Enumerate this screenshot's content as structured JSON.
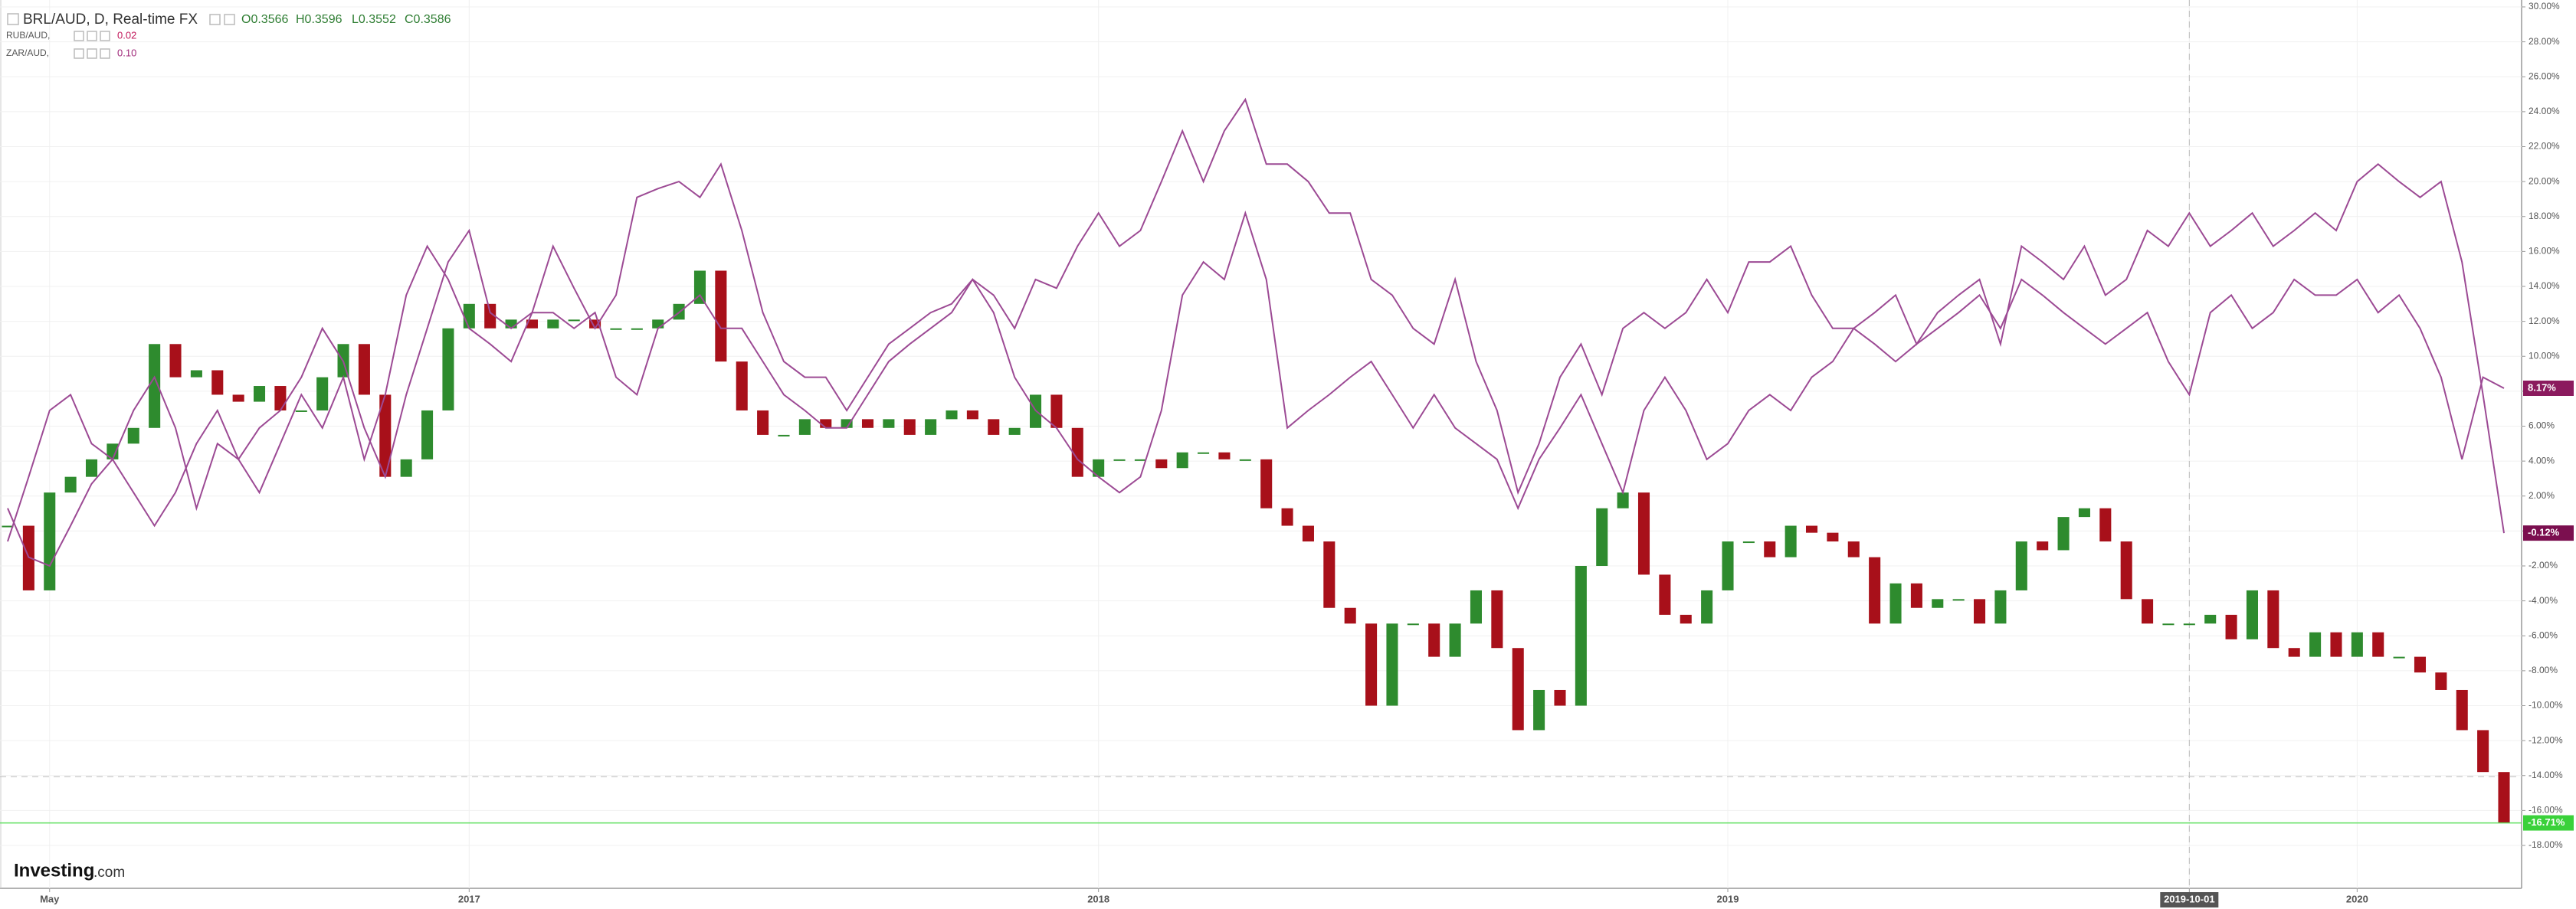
{
  "chart_data": {
    "type": "line",
    "series": [
      {
        "name": "BRL/AUD, D, Real-time FX",
        "kind": "candle",
        "up_color": "#2e8b2e",
        "down_color": "#a8101a",
        "last_line_color": "#5fe05f",
        "label_color": "#3ad13a",
        "ohlc": [
          {
            "value": 0.3566,
            "label": "O0.3566"
          },
          {
            "value": 0.3596,
            "label": "H0.3596"
          },
          {
            "value": 0.3552,
            "label": "L0.3552"
          },
          {
            "value": 0.3586,
            "label": "C0.3586"
          }
        ],
        "values": [
          0.3,
          -3.4,
          2.2,
          3.1,
          4.1,
          5.0,
          5.9,
          10.7,
          8.8,
          9.2,
          7.8,
          7.4,
          8.3,
          6.9,
          6.9,
          8.8,
          10.7,
          7.8,
          3.1,
          4.1,
          6.9,
          11.6,
          13.0,
          11.6,
          12.1,
          11.6,
          12.1,
          12.1,
          11.6,
          11.6,
          11.6,
          12.1,
          13.0,
          14.9,
          9.7,
          6.9,
          5.5,
          5.5,
          6.4,
          5.9,
          6.4,
          5.9,
          6.4,
          5.5,
          6.4,
          6.9,
          6.4,
          5.5,
          5.9,
          7.8,
          5.9,
          3.1,
          4.1,
          4.1,
          4.1,
          3.6,
          4.5,
          4.5,
          4.1,
          4.1,
          1.3,
          0.3,
          -0.6,
          -4.4,
          -5.3,
          -10.0,
          -5.3,
          -5.3,
          -7.2,
          -5.3,
          -3.4,
          -6.7,
          -11.4,
          -9.1,
          -10.0,
          -2.0,
          1.3,
          2.2,
          -2.5,
          -4.8,
          -5.3,
          -3.4,
          -0.6,
          -0.6,
          -1.5,
          0.3,
          -0.1,
          -0.6,
          -1.5,
          -5.3,
          -3.0,
          -4.4,
          -3.9,
          -3.9,
          -5.3,
          -3.4,
          -0.6,
          -1.1,
          0.8,
          1.3,
          -0.6,
          -3.9,
          -5.3,
          -5.3,
          -5.3,
          -4.8,
          -6.2,
          -3.4,
          -6.7,
          -7.2,
          -5.8,
          -7.2,
          -5.8,
          -7.2,
          -7.2,
          -8.1,
          -9.1,
          -11.4,
          -13.8,
          -16.71
        ],
        "value_labels": [
          null,
          null,
          null,
          null,
          null,
          null,
          null,
          null,
          null,
          null,
          null,
          null,
          null,
          null,
          null,
          null,
          null,
          null,
          null,
          null,
          null,
          null,
          null,
          null,
          null,
          null,
          null,
          null,
          null,
          null,
          null,
          null,
          null,
          null,
          null,
          null,
          null,
          null,
          null,
          null,
          null,
          null,
          null,
          null,
          null,
          null,
          null,
          null,
          null,
          null,
          null,
          null,
          null,
          null,
          null,
          null,
          null,
          null,
          null,
          null,
          null,
          null,
          null,
          null,
          null,
          null,
          null,
          null,
          null,
          null,
          null,
          null,
          null,
          null,
          null,
          null,
          null,
          null,
          null,
          null,
          null,
          null,
          null,
          null,
          null,
          null,
          null,
          null,
          null,
          null,
          null,
          null,
          null,
          null,
          null,
          null,
          null,
          null,
          null,
          null,
          null,
          null,
          null,
          null,
          null,
          null,
          null,
          null,
          null,
          null,
          null,
          null,
          null,
          null,
          null,
          null,
          null,
          null,
          null,
          "-16.71%"
        ]
      },
      {
        "name": "RUB/AUD,",
        "kind": "line",
        "color": "#9c4a94",
        "label_color": "#8b1a5e",
        "legend_color": "#c2185b",
        "legend_value": 0.02,
        "values": [
          1.3,
          -1.5,
          -2.0,
          0.3,
          2.7,
          4.1,
          2.2,
          0.3,
          2.2,
          5.0,
          6.9,
          4.1,
          2.2,
          5.0,
          7.8,
          5.9,
          8.8,
          4.1,
          7.8,
          13.5,
          16.3,
          14.4,
          11.6,
          10.7,
          9.7,
          12.5,
          12.5,
          11.6,
          12.5,
          8.8,
          7.8,
          11.6,
          12.5,
          13.5,
          11.6,
          11.6,
          9.7,
          7.8,
          6.9,
          5.9,
          5.9,
          7.8,
          9.7,
          10.7,
          11.6,
          12.5,
          14.4,
          12.5,
          8.8,
          6.9,
          5.9,
          4.1,
          3.1,
          2.2,
          3.1,
          6.9,
          13.5,
          15.4,
          14.4,
          18.2,
          14.4,
          5.9,
          6.9,
          7.8,
          8.8,
          9.7,
          7.8,
          5.9,
          7.8,
          5.9,
          5.0,
          4.1,
          1.3,
          4.1,
          5.9,
          7.8,
          5.0,
          2.2,
          6.9,
          8.8,
          6.9,
          4.1,
          5.0,
          6.9,
          7.8,
          6.9,
          8.8,
          9.7,
          11.6,
          10.7,
          9.7,
          10.7,
          11.6,
          12.5,
          13.5,
          11.6,
          14.4,
          13.5,
          12.5,
          11.6,
          10.7,
          11.6,
          12.5,
          9.7,
          7.8,
          12.5,
          13.5,
          11.6,
          12.5,
          14.4,
          13.5,
          13.5,
          14.4,
          12.5,
          13.5,
          11.6,
          8.8,
          4.1,
          8.8,
          8.17
        ],
        "value_labels": [
          null,
          null,
          null,
          null,
          null,
          null,
          null,
          null,
          null,
          null,
          null,
          null,
          null,
          null,
          null,
          null,
          null,
          null,
          null,
          null,
          null,
          null,
          null,
          null,
          null,
          null,
          null,
          null,
          null,
          null,
          null,
          null,
          null,
          null,
          null,
          null,
          null,
          null,
          null,
          null,
          null,
          null,
          null,
          null,
          null,
          null,
          null,
          null,
          null,
          null,
          null,
          null,
          null,
          null,
          null,
          null,
          null,
          null,
          null,
          null,
          null,
          null,
          null,
          null,
          null,
          null,
          null,
          null,
          null,
          null,
          null,
          null,
          null,
          null,
          null,
          null,
          null,
          null,
          null,
          null,
          null,
          null,
          null,
          null,
          null,
          null,
          null,
          null,
          null,
          null,
          null,
          null,
          null,
          null,
          null,
          null,
          null,
          null,
          null,
          null,
          null,
          null,
          null,
          null,
          null,
          null,
          null,
          null,
          null,
          null,
          null,
          null,
          null,
          null,
          null,
          null,
          null,
          null,
          null,
          "8.17%"
        ]
      },
      {
        "name": "ZAR/AUD,",
        "kind": "line",
        "color": "#9c4a94",
        "label_color": "#7b0f4f",
        "legend_color": "#a0297a",
        "legend_value": {
          "value": 0.1,
          "label": "0.10"
        },
        "values": [
          -0.6,
          3.1,
          6.9,
          7.8,
          5.0,
          4.1,
          6.9,
          8.8,
          5.9,
          1.3,
          5.0,
          4.1,
          5.9,
          6.9,
          8.8,
          11.6,
          9.7,
          5.9,
          3.1,
          7.8,
          11.6,
          15.4,
          17.2,
          12.5,
          11.6,
          12.5,
          16.3,
          13.9,
          11.6,
          13.5,
          19.1,
          19.6,
          20.0,
          19.1,
          21.0,
          17.2,
          12.5,
          9.7,
          8.8,
          8.8,
          6.9,
          8.8,
          10.7,
          11.6,
          12.5,
          13.0,
          14.4,
          13.5,
          11.6,
          14.4,
          13.9,
          16.3,
          18.2,
          16.3,
          17.2,
          20.0,
          22.9,
          20.0,
          22.9,
          24.7,
          21.0,
          21.0,
          20.0,
          18.2,
          18.2,
          14.4,
          13.5,
          11.6,
          10.7,
          14.4,
          9.7,
          6.9,
          2.2,
          5.0,
          8.8,
          10.7,
          7.8,
          11.6,
          12.5,
          11.6,
          12.5,
          14.4,
          12.5,
          15.4,
          15.4,
          16.3,
          13.5,
          11.6,
          11.6,
          12.5,
          13.5,
          10.7,
          12.5,
          13.5,
          14.4,
          10.7,
          16.3,
          15.4,
          14.4,
          16.3,
          13.5,
          14.4,
          17.2,
          16.3,
          18.2,
          16.3,
          17.2,
          18.2,
          16.3,
          17.2,
          18.2,
          17.2,
          20.0,
          21.0,
          20.0,
          19.1,
          20.0,
          15.4,
          7.8,
          -0.12
        ],
        "value_labels": [
          null,
          null,
          null,
          null,
          null,
          null,
          null,
          null,
          null,
          null,
          null,
          null,
          null,
          null,
          null,
          null,
          null,
          null,
          null,
          null,
          null,
          null,
          null,
          null,
          null,
          null,
          null,
          null,
          null,
          null,
          null,
          null,
          null,
          null,
          null,
          null,
          null,
          null,
          null,
          null,
          null,
          null,
          null,
          null,
          null,
          null,
          null,
          null,
          null,
          null,
          null,
          null,
          null,
          null,
          null,
          null,
          null,
          null,
          null,
          null,
          null,
          null,
          null,
          null,
          null,
          null,
          null,
          null,
          null,
          null,
          null,
          null,
          null,
          null,
          null,
          null,
          null,
          null,
          null,
          null,
          null,
          null,
          null,
          null,
          null,
          null,
          null,
          null,
          null,
          null,
          null,
          null,
          null,
          null,
          null,
          null,
          null,
          null,
          null,
          null,
          null,
          null,
          null,
          null,
          null,
          null,
          null,
          null,
          null,
          null,
          null,
          null,
          null,
          null,
          null,
          null,
          null,
          null,
          null,
          "-0.12%"
        ]
      }
    ],
    "categories": [
      null,
      null,
      "May",
      null,
      null,
      null,
      null,
      null,
      null,
      null,
      null,
      null,
      null,
      null,
      null,
      null,
      null,
      null,
      null,
      null,
      null,
      null,
      "2017",
      null,
      null,
      null,
      null,
      null,
      null,
      null,
      null,
      null,
      null,
      null,
      null,
      null,
      null,
      null,
      null,
      null,
      null,
      null,
      null,
      null,
      null,
      null,
      null,
      null,
      null,
      null,
      null,
      null,
      "2018",
      null,
      null,
      null,
      null,
      null,
      null,
      null,
      null,
      null,
      null,
      null,
      null,
      null,
      null,
      null,
      null,
      null,
      null,
      null,
      null,
      null,
      null,
      null,
      null,
      null,
      null,
      null,
      null,
      null,
      "2019",
      null,
      null,
      null,
      null,
      null,
      null,
      null,
      null,
      null,
      null,
      null,
      null,
      null,
      null,
      null,
      null,
      null,
      null,
      null,
      null,
      null,
      "2019-10-01",
      null,
      null,
      null,
      null,
      null,
      null,
      null,
      "2020",
      null,
      null,
      null,
      null,
      null,
      null,
      null
    ],
    "ylim": [
      -18,
      30
    ],
    "yticks": [
      {
        "value": 30,
        "label": "30.00%"
      },
      {
        "value": 28,
        "label": "28.00%"
      },
      {
        "value": 26,
        "label": "26.00%"
      },
      {
        "value": 24,
        "label": "24.00%"
      },
      {
        "value": 22,
        "label": "22.00%"
      },
      {
        "value": 20,
        "label": "20.00%"
      },
      {
        "value": 18,
        "label": "18.00%"
      },
      {
        "value": 16,
        "label": "16.00%"
      },
      {
        "value": 14,
        "label": "14.00%"
      },
      {
        "value": 12,
        "label": "12.00%"
      },
      {
        "value": 10,
        "label": "10.00%"
      },
      {
        "value": 8,
        "label": "8.00%"
      },
      {
        "value": 6,
        "label": "6.00%"
      },
      {
        "value": 4,
        "label": "4.00%"
      },
      {
        "value": 2,
        "label": "2.00%"
      },
      {
        "value": 0,
        "label": "0.00%"
      },
      {
        "value": -2,
        "label": "-2.00%"
      },
      {
        "value": -4,
        "label": "-4.00%"
      },
      {
        "value": -6,
        "label": "-6.00%"
      },
      {
        "value": -8,
        "label": "-8.00%"
      },
      {
        "value": -10,
        "label": "-10.00%"
      },
      {
        "value": -12,
        "label": "-12.00%"
      },
      {
        "value": -14,
        "label": "-14.00%"
      },
      {
        "value": -16,
        "label": "-16.00%"
      },
      {
        "value": -18,
        "label": "-18.00%"
      }
    ],
    "grid": true,
    "crosshair": {
      "x": "2019-10-01",
      "y": -14.0576,
      "color": "#555555"
    },
    "logo": "Investing",
    "logo_suffix": ".com"
  }
}
